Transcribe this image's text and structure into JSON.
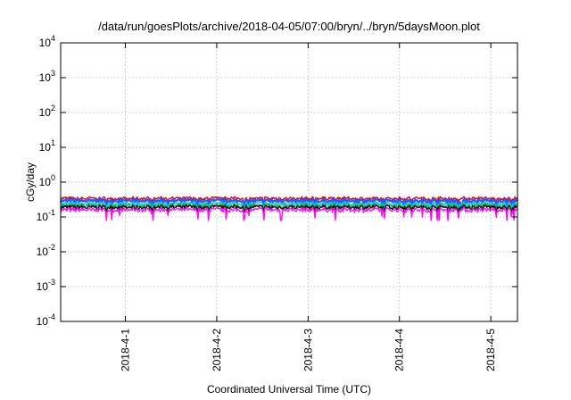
{
  "chart_data": {
    "type": "line",
    "title": "/data/run/goesPlots/archive/2018-04-05/07:00/bryn/../bryn/5daysMoon.plot",
    "xlabel": "Coordinated Universal Time (UTC)",
    "ylabel": "cGy/day",
    "yscale": "log",
    "ylim": [
      0.0001,
      10000
    ],
    "yticks": [
      {
        "base": "10",
        "exp": "-4",
        "value": 0.0001
      },
      {
        "base": "10",
        "exp": "-3",
        "value": 0.001
      },
      {
        "base": "10",
        "exp": "-2",
        "value": 0.01
      },
      {
        "base": "10",
        "exp": "-1",
        "value": 0.1
      },
      {
        "base": "10",
        "exp": "0",
        "value": 1
      },
      {
        "base": "10",
        "exp": "1",
        "value": 10
      },
      {
        "base": "10",
        "exp": "2",
        "value": 100
      },
      {
        "base": "10",
        "exp": "3",
        "value": 1000
      },
      {
        "base": "10",
        "exp": "4",
        "value": 10000
      }
    ],
    "xlim": [
      "2018-03-31T07:00",
      "2018-04-05T07:00"
    ],
    "xticks": [
      {
        "label": "2018-4-1",
        "value": "2018-04-01T00:00"
      },
      {
        "label": "2018-4-2",
        "value": "2018-04-02T00:00"
      },
      {
        "label": "2018-4-3",
        "value": "2018-04-03T00:00"
      },
      {
        "label": "2018-4-4",
        "value": "2018-04-04T00:00"
      },
      {
        "label": "2018-4-5",
        "value": "2018-04-05T00:00"
      }
    ],
    "grid": true,
    "legend": "none",
    "series": [
      {
        "color": "#e8001a",
        "typical": 0.34,
        "range": [
          0.26,
          0.42
        ]
      },
      {
        "color": "#1e5cff",
        "typical": 0.29,
        "range": [
          0.16,
          0.38
        ]
      },
      {
        "color": "#00c6d8",
        "typical": 0.24,
        "range": [
          0.16,
          0.3
        ]
      },
      {
        "color": "#22b14c",
        "typical": 0.21,
        "range": [
          0.16,
          0.25
        ]
      },
      {
        "color": "#111111",
        "typical": 0.19,
        "range": [
          0.14,
          0.22
        ]
      },
      {
        "color": "#ff10f0",
        "typical": 0.16,
        "range": [
          0.08,
          0.2
        ]
      }
    ]
  }
}
